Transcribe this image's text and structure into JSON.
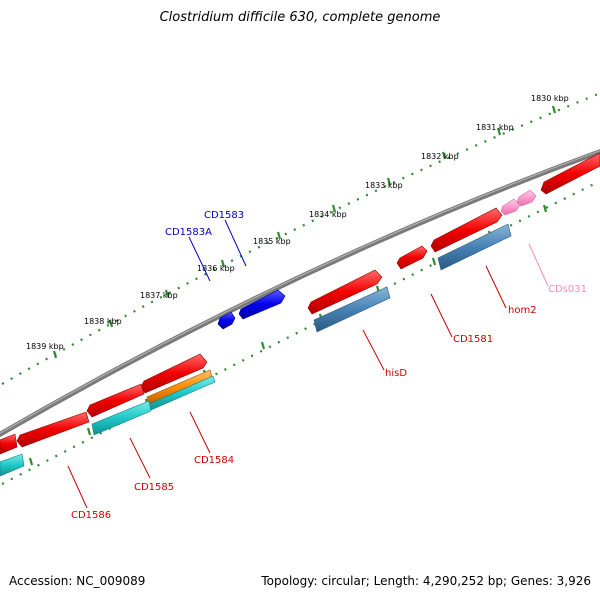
{
  "title": "Clostridium difficile 630, complete genome",
  "footer": {
    "accession": "Accession: NC_009089",
    "topology": "Topology: circular; Length: 4,290,252 bp; Genes: 3,926"
  },
  "colors": {
    "backbone": "#7a7a7a",
    "tick": "#2e8b2e",
    "gene_red": "#f20000",
    "gene_blue": "#0000ee",
    "gene_steelblue": "#4682b4",
    "gene_cyan": "#20c8c8",
    "gene_orange": "#ff8c00",
    "gene_pink": "#ff99cc",
    "label_red": "#cc0000",
    "label_blue": "#0000cc",
    "label_pink": "#ff88bb"
  },
  "kbp_labels": [
    "1830 kbp",
    "1831 kbp",
    "1832 kbp",
    "1833 kbp",
    "1834 kbp",
    "1835 kbp",
    "1836 kbp",
    "1837 kbp",
    "1838 kbp",
    "1839 kbp"
  ],
  "gene_labels": [
    "CD1583",
    "CD1583A",
    "CDs031",
    "hom2",
    "CD1581",
    "hisD",
    "CD1584",
    "CD1585",
    "CD1586"
  ]
}
